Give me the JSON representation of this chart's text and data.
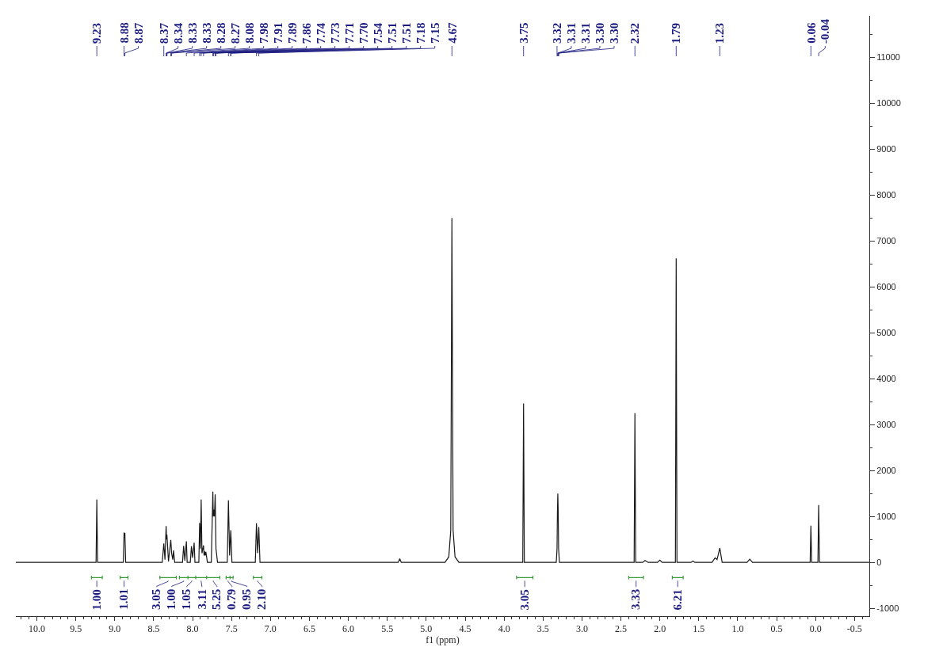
{
  "chart_data": {
    "type": "line",
    "xlabel": "f1 (ppm)",
    "xlim": [
      10.27,
      -0.69
    ],
    "ylim": [
      -1170,
      11900
    ],
    "xticks": [
      {
        "value": 10,
        "label": "10.0"
      },
      9.5,
      {
        "value": 9,
        "label": "9.0"
      },
      8.5,
      {
        "value": 8,
        "label": "8.0"
      },
      7.5,
      {
        "value": 7,
        "label": "7.0"
      },
      6.5,
      {
        "value": 6,
        "label": "6.0"
      },
      5.5,
      {
        "value": 5,
        "label": "5.0"
      },
      4.5,
      {
        "value": 4,
        "label": "4.0"
      },
      3.5,
      {
        "value": 3,
        "label": "3.0"
      },
      2.5,
      {
        "value": 2,
        "label": "2.0"
      },
      1.5,
      {
        "value": 1,
        "label": "1.0"
      },
      0.5,
      {
        "value": 0,
        "label": "0.0"
      },
      -0.5,
      {
        "value": 10.2,
        "label": null
      },
      {
        "value": 10.1,
        "label": null
      },
      {
        "value": 9.9,
        "label": null
      },
      {
        "value": 9.8,
        "label": null
      },
      {
        "value": 9.7,
        "label": null
      },
      {
        "value": 9.6,
        "label": null
      },
      {
        "value": 9.4,
        "label": null
      },
      {
        "value": 9.3,
        "label": null
      },
      {
        "value": 9.2,
        "label": null
      },
      {
        "value": 9.1,
        "label": null
      },
      {
        "value": 8.9,
        "label": null
      },
      {
        "value": 8.8,
        "label": null
      },
      {
        "value": 8.7,
        "label": null
      },
      {
        "value": 8.6,
        "label": null
      },
      {
        "value": 8.4,
        "label": null
      },
      {
        "value": 8.3,
        "label": null
      },
      {
        "value": 8.2,
        "label": null
      },
      {
        "value": 8.1,
        "label": null
      },
      {
        "value": 7.9,
        "label": null
      },
      {
        "value": 7.8,
        "label": null
      },
      {
        "value": 7.7,
        "label": null
      },
      {
        "value": 7.6,
        "label": null
      },
      {
        "value": 7.4,
        "label": null
      },
      {
        "value": 7.3,
        "label": null
      },
      {
        "value": 7.2,
        "label": null
      },
      {
        "value": 7.1,
        "label": null
      },
      {
        "value": 6.9,
        "label": null
      },
      {
        "value": 6.8,
        "label": null
      },
      {
        "value": 6.7,
        "label": null
      },
      {
        "value": 6.6,
        "label": null
      },
      {
        "value": 6.4,
        "label": null
      },
      {
        "value": 6.3,
        "label": null
      },
      {
        "value": 6.2,
        "label": null
      },
      {
        "value": 6.1,
        "label": null
      },
      {
        "value": 5.9,
        "label": null
      },
      {
        "value": 5.8,
        "label": null
      },
      {
        "value": 5.7,
        "label": null
      },
      {
        "value": 5.6,
        "label": null
      },
      {
        "value": 5.4,
        "label": null
      },
      {
        "value": 5.3,
        "label": null
      },
      {
        "value": 5.2,
        "label": null
      },
      {
        "value": 5.1,
        "label": null
      },
      {
        "value": 4.9,
        "label": null
      },
      {
        "value": 4.8,
        "label": null
      },
      {
        "value": 4.7,
        "label": null
      },
      {
        "value": 4.6,
        "label": null
      },
      {
        "value": 4.4,
        "label": null
      },
      {
        "value": 4.3,
        "label": null
      },
      {
        "value": 4.2,
        "label": null
      },
      {
        "value": 4.1,
        "label": null
      },
      {
        "value": 3.9,
        "label": null
      },
      {
        "value": 3.8,
        "label": null
      },
      {
        "value": 3.7,
        "label": null
      },
      {
        "value": 3.6,
        "label": null
      },
      {
        "value": 3.4,
        "label": null
      },
      {
        "value": 3.3,
        "label": null
      },
      {
        "value": 3.2,
        "label": null
      },
      {
        "value": 3.1,
        "label": null
      },
      {
        "value": 2.9,
        "label": null
      },
      {
        "value": 2.8,
        "label": null
      },
      {
        "value": 2.7,
        "label": null
      },
      {
        "value": 2.6,
        "label": null
      },
      {
        "value": 2.4,
        "label": null
      },
      {
        "value": 2.3,
        "label": null
      },
      {
        "value": 2.2,
        "label": null
      },
      {
        "value": 2.1,
        "label": null
      },
      {
        "value": 1.9,
        "label": null
      },
      {
        "value": 1.8,
        "label": null
      },
      {
        "value": 1.7,
        "label": null
      },
      {
        "value": 1.6,
        "label": null
      },
      {
        "value": 1.4,
        "label": null
      },
      {
        "value": 1.3,
        "label": null
      },
      {
        "value": 1.2,
        "label": null
      },
      {
        "value": 1.1,
        "label": null
      },
      {
        "value": 0.9,
        "label": null
      },
      {
        "value": 0.8,
        "label": null
      },
      {
        "value": 0.7,
        "label": null
      },
      {
        "value": 0.6,
        "label": null
      },
      {
        "value": 0.4,
        "label": null
      },
      {
        "value": 0.3,
        "label": null
      },
      {
        "value": 0.2,
        "label": null
      },
      {
        "value": 0.1,
        "label": null
      },
      {
        "value": -0.1,
        "label": null
      },
      {
        "value": -0.2,
        "label": null
      },
      {
        "value": -0.3,
        "label": null
      },
      {
        "value": -0.4,
        "label": null
      },
      {
        "value": -0.6,
        "label": null
      }
    ],
    "yticks": [
      -1000,
      0,
      1000,
      2000,
      3000,
      4000,
      5000,
      6000,
      7000,
      8000,
      9000,
      10000,
      11000,
      {
        "value": -500,
        "label": null
      },
      {
        "value": 500,
        "label": null
      },
      {
        "value": 1500,
        "label": null
      },
      {
        "value": 2500,
        "label": null
      },
      {
        "value": 3500,
        "label": null
      },
      {
        "value": 4500,
        "label": null
      },
      {
        "value": 5500,
        "label": null
      },
      {
        "value": 6500,
        "label": null
      },
      {
        "value": 7500,
        "label": null
      },
      {
        "value": 8500,
        "label": null
      },
      {
        "value": 9500,
        "label": null
      },
      {
        "value": 10500,
        "label": null
      },
      {
        "value": 11500,
        "label": null
      }
    ],
    "x": [
      10.27,
      9.24,
      9.23,
      9.22,
      8.89,
      8.88,
      8.875,
      8.87,
      8.86,
      8.39,
      8.37,
      8.355,
      8.34,
      8.335,
      8.33,
      8.31,
      8.28,
      8.27,
      8.255,
      8.245,
      8.23,
      8.13,
      8.115,
      8.1,
      8.08,
      8.07,
      8.03,
      8.015,
      8.0,
      7.98,
      7.97,
      7.92,
      7.91,
      7.9,
      7.89,
      7.88,
      7.86,
      7.853,
      7.845,
      7.838,
      7.83,
      7.81,
      7.76,
      7.74,
      7.735,
      7.73,
      7.72,
      7.71,
      7.7,
      7.68,
      7.555,
      7.54,
      7.525,
      7.51,
      7.495,
      7.195,
      7.18,
      7.165,
      7.15,
      7.135,
      5.36,
      5.34,
      5.32,
      4.76,
      4.71,
      4.685,
      4.67,
      4.655,
      4.63,
      4.58,
      3.76,
      3.75,
      3.74,
      3.33,
      3.32,
      3.315,
      3.31,
      3.305,
      3.3,
      3.29,
      2.33,
      2.32,
      2.31,
      2.22,
      2.19,
      2.15,
      2.03,
      2.0,
      1.97,
      1.8,
      1.79,
      1.78,
      1.6,
      1.575,
      1.55,
      1.33,
      1.29,
      1.265,
      1.23,
      1.2,
      0.88,
      0.845,
      0.81,
      0.07,
      0.06,
      0.05,
      -0.03,
      -0.04,
      -0.05,
      -0.69
    ],
    "series": [
      {
        "color": "#1a1a1a",
        "values": [
          0,
          0,
          1370,
          0,
          0,
          650,
          600,
          640,
          0,
          0,
          410,
          60,
          790,
          500,
          600,
          20,
          490,
          200,
          60,
          260,
          0,
          0,
          360,
          40,
          460,
          0,
          0,
          350,
          100,
          430,
          0,
          0,
          860,
          300,
          1370,
          200,
          370,
          150,
          240,
          150,
          230,
          0,
          0,
          1540,
          1000,
          1150,
          1000,
          1480,
          300,
          0,
          0,
          1350,
          150,
          700,
          0,
          0,
          850,
          200,
          770,
          0,
          0,
          80,
          0,
          0,
          120,
          700,
          7500,
          700,
          120,
          0,
          0,
          3460,
          0,
          0,
          300,
          1090,
          1500,
          1090,
          300,
          0,
          0,
          3250,
          0,
          0,
          40,
          0,
          0,
          50,
          0,
          0,
          6620,
          0,
          0,
          30,
          0,
          0,
          100,
          60,
          310,
          0,
          0,
          70,
          0,
          0,
          800,
          0,
          0,
          1250,
          0,
          0
        ]
      },
      {
        "type": "line",
        "color": "#3a9a3a",
        "x": [
          9.3,
          9.3,
          9.3,
          9.16,
          9.16,
          9.16,
          null,
          8.93,
          8.93,
          8.93,
          8.83,
          8.83,
          8.83,
          null,
          8.42,
          8.42,
          8.42,
          8.21,
          8.21,
          8.21,
          null,
          8.17,
          8.17,
          8.17,
          8.06,
          8.06,
          8.06,
          8.06,
          7.96,
          7.96,
          7.96,
          7.96,
          7.82,
          7.82,
          7.82,
          7.82,
          7.65,
          7.65,
          7.65,
          null,
          7.57,
          7.57,
          7.57,
          7.52,
          7.52,
          7.52,
          7.52,
          7.48,
          7.48,
          7.48,
          null,
          7.22,
          7.22,
          7.22,
          7.11,
          7.11,
          7.11,
          null,
          3.84,
          3.84,
          3.84,
          3.63,
          3.63,
          3.63,
          null,
          2.4,
          2.4,
          2.4,
          2.21,
          2.21,
          2.21,
          null,
          1.84,
          1.84,
          1.84,
          1.7,
          1.7,
          1.7
        ],
        "values": [
          -290,
          -370,
          -330,
          -330,
          -290,
          -370,
          null,
          -290,
          -370,
          -330,
          -330,
          -290,
          -370,
          null,
          -290,
          -370,
          -330,
          -330,
          -290,
          -370,
          null,
          -290,
          -370,
          -330,
          -330,
          -290,
          -370,
          -330,
          -330,
          -290,
          -370,
          -330,
          -330,
          -290,
          -370,
          -330,
          -330,
          -290,
          -370,
          null,
          -290,
          -370,
          -330,
          -330,
          -290,
          -370,
          -330,
          -330,
          -290,
          -370,
          null,
          -290,
          -370,
          -330,
          -330,
          -290,
          -370,
          null,
          -290,
          -370,
          -330,
          -330,
          -290,
          -370,
          null,
          -290,
          -370,
          -330,
          -330,
          -290,
          -370,
          null,
          -290,
          -370,
          -330,
          -330,
          -290,
          -370
        ]
      }
    ],
    "annotations": [
      {
        "text": "9.23",
        "x": 9.23
      },
      {
        "text": "8.88",
        "x": 8.88
      },
      {
        "text": "8.87",
        "x": 8.87
      },
      {
        "text": "8.37",
        "x": 8.37
      },
      {
        "text": "8.34",
        "x": 8.34
      },
      {
        "text": "8.33",
        "x": 8.33
      },
      {
        "text": "8.33",
        "x": 8.33
      },
      {
        "text": "8.28",
        "x": 8.28
      },
      {
        "text": "8.27",
        "x": 8.27
      },
      {
        "text": "8.08",
        "x": 8.08
      },
      {
        "text": "7.98",
        "x": 7.98
      },
      {
        "text": "7.91",
        "x": 7.91
      },
      {
        "text": "7.89",
        "x": 7.89
      },
      {
        "text": "7.86",
        "x": 7.86
      },
      {
        "text": "7.74",
        "x": 7.74
      },
      {
        "text": "7.73",
        "x": 7.73
      },
      {
        "text": "7.71",
        "x": 7.71
      },
      {
        "text": "7.70",
        "x": 7.7
      },
      {
        "text": "7.54",
        "x": 7.54
      },
      {
        "text": "7.51",
        "x": 7.51
      },
      {
        "text": "7.51",
        "x": 7.51
      },
      {
        "text": "7.18",
        "x": 7.18
      },
      {
        "text": "7.15",
        "x": 7.15
      },
      {
        "text": "4.67",
        "x": 4.67
      },
      {
        "text": "3.75",
        "x": 3.75
      },
      {
        "text": "3.32",
        "x": 3.32
      },
      {
        "text": "3.31",
        "x": 3.31
      },
      {
        "text": "3.31",
        "x": 3.31
      },
      {
        "text": "3.30",
        "x": 3.3
      },
      {
        "text": "3.30",
        "x": 3.3
      },
      {
        "text": "2.32",
        "x": 2.32
      },
      {
        "text": "1.79",
        "x": 1.79
      },
      {
        "text": "1.23",
        "x": 1.23
      },
      {
        "text": "0.06",
        "x": 0.06
      },
      {
        "text": "-0.04",
        "x": -0.04
      },
      {
        "text": "1.00",
        "x": 9.23,
        "y": -330
      },
      {
        "text": "1.01",
        "x": 8.88,
        "y": -330
      },
      {
        "text": "3.05",
        "x": 8.315,
        "y": -330
      },
      {
        "text": "1.00",
        "x": 8.115,
        "y": -330
      },
      {
        "text": "1.05",
        "x": 8.01,
        "y": -330
      },
      {
        "text": "3.11",
        "x": 7.89,
        "y": -330
      },
      {
        "text": "5.25",
        "x": 7.735,
        "y": -330
      },
      {
        "text": "0.79",
        "x": 7.545,
        "y": -330
      },
      {
        "text": "0.95",
        "x": 7.5,
        "y": -330
      },
      {
        "text": "2.10",
        "x": 7.165,
        "y": -330
      },
      {
        "text": "3.05",
        "x": 3.735,
        "y": -330
      },
      {
        "text": "3.33",
        "x": 2.305,
        "y": -330
      },
      {
        "text": "6.21",
        "x": 1.77,
        "y": -330
      }
    ]
  }
}
